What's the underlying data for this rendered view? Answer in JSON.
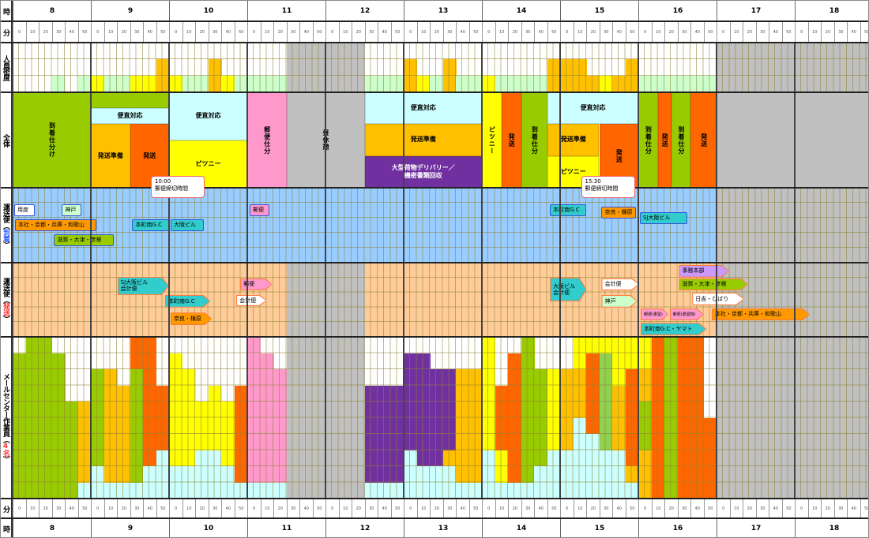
{
  "hours": [
    "8",
    "9",
    "10",
    "11",
    "12",
    "13",
    "14",
    "15",
    "16",
    "17",
    "18"
  ],
  "minutes": [
    "0",
    "10",
    "20",
    "30",
    "40",
    "50"
  ],
  "row_labels": {
    "hour": "時",
    "minute": "分",
    "density": "人員密度",
    "overall": "全体",
    "arrival_prefix": "運送便（",
    "arrival_em": "到着",
    "arrival_suffix": "）",
    "departure_prefix": "運送便（",
    "departure_em": "発送",
    "departure_suffix": "）",
    "worker_prefix": "メールセンター作業員（",
    "worker_em": "4名",
    "worker_suffix": "）"
  },
  "colors": {
    "W": "#ffffff",
    "G": "#99cc00",
    "Y": "#ffff00",
    "O": "#ffc000",
    "R": "#ff6600",
    "C": "#ccffff",
    "P": "#7030a0",
    "K": "#ff99cc",
    "L": "#92d050",
    "M": "#ccffcc",
    "X": "#c0c0c0",
    "B": "#99ccff",
    "S": "#ffcc99",
    "T": "#33cccc",
    "V": "#cc99ff"
  },
  "density": [
    "WWW",
    "WWW",
    "WWW",
    "WWM",
    "WWW",
    "WWM",
    "WWY",
    "WWM",
    "WWM",
    "WWY",
    "WWY",
    "WOO",
    "WWY",
    "WWM",
    "WWM",
    "WOO",
    "WWY",
    "WWM",
    "WWM",
    "WWM",
    "WWM",
    "XXX",
    "XXX",
    "XXX",
    "XXX",
    "XXX",
    "XXX",
    "WWM",
    "WWM",
    "WWM",
    "WOO",
    "WWY",
    "WWM",
    "WOO",
    "WWM",
    "WWM",
    "WWY",
    "WWM",
    "WWM",
    "WWM",
    "WWM",
    "WOO",
    "WOO",
    "WOO",
    "WWO",
    "WWY",
    "WWO",
    "WOO",
    "WWM",
    "WWM",
    "WWM",
    "WWM",
    "WWM",
    "WWM"
  ],
  "overall_blocks": [
    {
      "label": "到着仕分け",
      "start": 8.0,
      "end": 9.0,
      "lanes": [
        0,
        6
      ],
      "color": "G",
      "vertical": true
    },
    {
      "label": "",
      "start": 9.0,
      "end": 10.0,
      "lanes": [
        0,
        1
      ],
      "color": "G"
    },
    {
      "label": "便直対応",
      "start": 9.0,
      "end": 10.0,
      "lanes": [
        1,
        2
      ],
      "color": "C"
    },
    {
      "label": "発送準備",
      "start": 9.0,
      "end": 9.5,
      "lanes": [
        2,
        6
      ],
      "color": "O"
    },
    {
      "label": "発送",
      "start": 9.5,
      "end": 10.0,
      "lanes": [
        2,
        6
      ],
      "color": "R"
    },
    {
      "label": "便直対応",
      "start": 10.0,
      "end": 11.0,
      "lanes": [
        0,
        3
      ],
      "color": "C"
    },
    {
      "label": "ピツニー",
      "start": 10.0,
      "end": 11.0,
      "lanes": [
        3,
        6
      ],
      "color": "Y"
    },
    {
      "label": "郵便仕分",
      "start": 11.0,
      "end": 11.5,
      "lanes": [
        0,
        6
      ],
      "color": "K",
      "vertical": true
    },
    {
      "label": "昼休憩",
      "start": 11.5,
      "end": 12.5,
      "lanes": [
        0,
        6
      ],
      "color": "X",
      "vertical": true
    },
    {
      "label": "便直対応",
      "start": 12.5,
      "end": 14.0,
      "lanes": [
        0,
        2
      ],
      "color": "C"
    },
    {
      "label": "発送準備",
      "start": 12.5,
      "end": 14.0,
      "lanes": [
        2,
        4
      ],
      "color": "O"
    },
    {
      "label": "大型荷物デリバリー／\n機密書類回収",
      "start": 12.5,
      "end": 14.0,
      "lanes": [
        4,
        6
      ],
      "color": "P",
      "light": true
    },
    {
      "label": "ピツニー",
      "start": 14.0,
      "end": 14.25,
      "lanes": [
        0,
        6
      ],
      "color": "Y",
      "vertical": true
    },
    {
      "label": "発送",
      "start": 14.25,
      "end": 14.5,
      "lanes": [
        0,
        6
      ],
      "color": "R",
      "vertical": true
    },
    {
      "label": "到着仕分",
      "start": 14.5,
      "end": 14.84,
      "lanes": [
        0,
        6
      ],
      "color": "G",
      "vertical": true
    },
    {
      "label": "便直対応",
      "start": 14.84,
      "end": 16.0,
      "lanes": [
        0,
        2
      ],
      "color": "C"
    },
    {
      "label": "発送準備",
      "start": 14.84,
      "end": 15.5,
      "lanes": [
        2,
        4
      ],
      "color": "O"
    },
    {
      "label": "ピツニー",
      "start": 14.84,
      "end": 15.5,
      "lanes": [
        4,
        6
      ],
      "color": "Y"
    },
    {
      "label": "発送",
      "start": 15.5,
      "end": 16.0,
      "lanes": [
        2,
        6
      ],
      "color": "R",
      "vertical": true
    },
    {
      "label": "到着仕分",
      "start": 16.0,
      "end": 16.25,
      "lanes": [
        0,
        6
      ],
      "color": "G",
      "vertical": true
    },
    {
      "label": "発送",
      "start": 16.25,
      "end": 16.42,
      "lanes": [
        0,
        6
      ],
      "color": "R",
      "vertical": true
    },
    {
      "label": "到着仕分",
      "start": 16.42,
      "end": 16.67,
      "lanes": [
        0,
        6
      ],
      "color": "G",
      "vertical": true
    },
    {
      "label": "発送",
      "start": 16.67,
      "end": 17.0,
      "lanes": [
        0,
        6
      ],
      "color": "R",
      "vertical": true
    }
  ],
  "callouts": [
    {
      "time": "10:00",
      "text": "郵便締切時間",
      "at": 10.0
    },
    {
      "time": "15:30",
      "text": "郵便締切時間",
      "at": 15.5
    }
  ],
  "arrivals": [
    {
      "label": "用度",
      "start": 8.02,
      "end": 8.28,
      "row": 1,
      "color": "W"
    },
    {
      "label": "神戸",
      "start": 8.63,
      "end": 8.88,
      "row": 1,
      "color": "M"
    },
    {
      "label": "本社・京都・兵庫・和歌山",
      "start": 8.03,
      "end": 9.07,
      "row": 2,
      "color": "R2"
    },
    {
      "label": "滋賀・大津・彦根",
      "start": 8.53,
      "end": 9.29,
      "row": 3,
      "color": "G"
    },
    {
      "label": "本町南G.C",
      "start": 9.53,
      "end": 10.0,
      "row": 2,
      "color": "T"
    },
    {
      "label": "大阪ビル",
      "start": 10.02,
      "end": 10.44,
      "row": 2,
      "color": "T"
    },
    {
      "label": "郵便",
      "start": 11.03,
      "end": 11.28,
      "row": 1,
      "color": "K"
    },
    {
      "label": "本町南G.C",
      "start": 14.87,
      "end": 15.33,
      "row": 1,
      "color": "T"
    },
    {
      "label": "奈良・橿原",
      "start": 15.53,
      "end": 15.97,
      "row": 1.15,
      "color": "R2"
    },
    {
      "label": "SJ大阪ビル",
      "start": 16.02,
      "end": 16.63,
      "row": 1.5,
      "color": "T"
    }
  ],
  "departures": [
    {
      "label": "SJ大阪ビル\n会計便",
      "start": 9.34,
      "end": 10.0,
      "row": 0.95,
      "span": 1.25,
      "color": "T"
    },
    {
      "label": "郵便",
      "start": 10.91,
      "end": 11.32,
      "row": 1.05,
      "span": 0.85,
      "color": "K"
    },
    {
      "label": "本町南G.C",
      "start": 9.95,
      "end": 10.53,
      "row": 2.2,
      "span": 0.85,
      "color": "T"
    },
    {
      "label": "会計便",
      "start": 10.86,
      "end": 11.25,
      "row": 2.2,
      "span": 0.75,
      "color": "W"
    },
    {
      "label": "奈良・橿原",
      "start": 10.02,
      "end": 10.55,
      "row": 3.4,
      "span": 0.85,
      "color": "R2"
    },
    {
      "label": "大阪ビル\n会計便",
      "start": 14.87,
      "end": 15.34,
      "row": 1.0,
      "span": 1.65,
      "color": "T"
    },
    {
      "label": "会計便",
      "start": 15.53,
      "end": 16.01,
      "row": 1.05,
      "span": 0.85,
      "color": "W"
    },
    {
      "label": "神戸",
      "start": 15.53,
      "end": 15.99,
      "row": 2.2,
      "span": 0.85,
      "color": "M"
    },
    {
      "label": "事務本部",
      "start": 16.52,
      "end": 17.16,
      "row": 0.15,
      "span": 0.85,
      "color": "V"
    },
    {
      "label": "滋賀・大津・彦根",
      "start": 16.52,
      "end": 17.4,
      "row": 1.05,
      "span": 0.85,
      "color": "G"
    },
    {
      "label": "日吉・ひばり",
      "start": 16.69,
      "end": 17.35,
      "row": 2.05,
      "span": 0.85,
      "color": "W"
    },
    {
      "label": "郵便(書留)",
      "start": 16.03,
      "end": 16.39,
      "row": 3.1,
      "span": 0.85,
      "color": "K",
      "small": true
    },
    {
      "label": "郵便(書留物)",
      "start": 16.4,
      "end": 16.84,
      "row": 3.1,
      "span": 0.85,
      "color": "K",
      "small": true
    },
    {
      "label": "本社・京都・兵庫・和歌山",
      "start": 16.94,
      "end": 18.19,
      "row": 3.1,
      "span": 0.85,
      "color": "R2"
    },
    {
      "label": "本町南G.C・ヤマト",
      "start": 16.03,
      "end": 16.87,
      "row": 4.1,
      "span": 0.85,
      "color": "T"
    }
  ],
  "workers": [
    "WGGGGGGGGG",
    "GGGGGGGGGG",
    "GGGGGGGGGG",
    "WGGGGGGGGG",
    "WWWWGGGGGG",
    "WWWWOOOOOC",
    "WWGGGGGGCC",
    "WWOOOOOOOC",
    "WWWOOOOOOC",
    "RRGGGGGGGC",
    "RRRRRRRRCC",
    "WWWRRRRCCC",
    "WYYYYYYYCC",
    "WWYYYYYYCC",
    "WWWWYYYCCC",
    "WWWYYYYCCC",
    "WWWWYYYYCC",
    "WWWRRRRRRC",
    "KKKKKKKKKC",
    "WKKKKKKKKC",
    "WWKKKKKKKC",
    "XXXXXXXXXX",
    "XXXXXXXXXX",
    "XXXXXXXXXX",
    "XXXXXXXXXX",
    "XXXXXXXXXX",
    "XXXXXXXXXX",
    "WWWPPPPPPC",
    "WWWPPPPPPC",
    "WWWPPPPPPC",
    "WPPPPPPCCC",
    "WPPPPPPPCC",
    "WWPPPPPPCC",
    "WWPPPPPOCC",
    "WWOOOOOOOC",
    "WWOOOOOOOC",
    "YYYYYYYCCC",
    "WWWRRRRYYC",
    "WRRRRRRRRC",
    "GGGGGGGGGC",
    "WWGGGGGGCC",
    "WWYYYYYCCC",
    "WWOOOOOCCC",
    "YYOOOCCCCC",
    "YRRRRRCCCC",
    "YLLLLLLCCC",
    "YYYOOOOCCC",
    "YYRRRRRROC",
    "YYOOGGGOOO",
    "RRRRRRRRRR",
    "GGGGGGGGGG",
    "RRRRRRRRRR",
    "RRRRRRRRRR",
    "WWWWWRRRRR"
  ]
}
